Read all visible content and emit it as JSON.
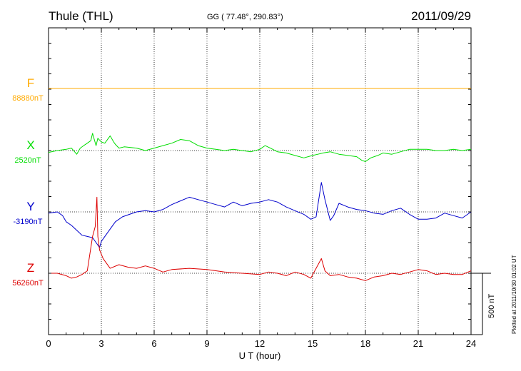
{
  "header": {
    "station": "Thule (THL)",
    "coords": "GG ( 77.48°, 290.83°)",
    "date": "2011/09/29"
  },
  "footer_note": "Plotted at 2011/10/30 01:02 UT",
  "colors": {
    "F": "#ffaa00",
    "X": "#00dd00",
    "Y": "#0000cc",
    "Z": "#dd0000",
    "axis": "#000000",
    "grid": "#000000"
  },
  "chart_data": {
    "type": "line",
    "xlabel": "U T (hour)",
    "xlim": [
      0,
      24
    ],
    "xticks": [
      0,
      3,
      6,
      9,
      12,
      15,
      18,
      21,
      24
    ],
    "xtick_labels": [
      "0",
      "3",
      "6",
      "9",
      "12",
      "15",
      "18",
      "21",
      "24"
    ],
    "y_units": "nT",
    "scale_bar_nT": 500,
    "scale_bar_label": "500 nT",
    "grid": true,
    "series": [
      {
        "name": "F",
        "baseline_label": "88880nT",
        "x": [
          0,
          24
        ],
        "offset_nT": [
          0,
          0
        ]
      },
      {
        "name": "X",
        "baseline_label": "2520nT",
        "x": [
          0,
          0.5,
          1.0,
          1.3,
          1.6,
          1.8,
          2.0,
          2.2,
          2.4,
          2.5,
          2.6,
          2.7,
          2.8,
          3.0,
          3.2,
          3.5,
          3.7,
          3.8,
          4.0,
          4.3,
          5.0,
          5.5,
          6.0,
          6.5,
          7.0,
          7.5,
          8.0,
          8.5,
          9.0,
          9.5,
          10.0,
          10.5,
          11.0,
          11.5,
          12.0,
          12.3,
          12.6,
          13.0,
          13.5,
          14.0,
          14.5,
          15.0,
          15.3,
          15.6,
          16.0,
          16.5,
          17.0,
          17.5,
          17.8,
          18.0,
          18.3,
          18.7,
          19.0,
          19.5,
          20.0,
          20.5,
          21.0,
          21.5,
          22.0,
          22.5,
          23.0,
          23.5,
          24.0
        ],
        "offset_nT": [
          -15,
          0,
          10,
          20,
          -30,
          20,
          40,
          60,
          80,
          140,
          90,
          40,
          100,
          70,
          60,
          120,
          70,
          50,
          20,
          30,
          20,
          0,
          20,
          40,
          60,
          90,
          80,
          40,
          20,
          10,
          0,
          10,
          0,
          -10,
          10,
          40,
          20,
          -10,
          -20,
          -40,
          -60,
          -40,
          -30,
          -20,
          -10,
          -30,
          -40,
          -50,
          -80,
          -90,
          -60,
          -40,
          -20,
          -30,
          -10,
          10,
          10,
          10,
          0,
          0,
          10,
          0,
          10
        ]
      },
      {
        "name": "Y",
        "baseline_label": "-3190nT",
        "x": [
          0,
          0.5,
          0.8,
          1.0,
          1.3,
          1.6,
          1.9,
          2.2,
          2.5,
          2.7,
          2.9,
          3.0,
          3.2,
          3.5,
          3.8,
          4.2,
          4.6,
          5.0,
          5.5,
          6.0,
          6.5,
          7.0,
          7.5,
          8.0,
          8.5,
          9.0,
          9.5,
          10.0,
          10.5,
          11.0,
          11.5,
          12.0,
          12.5,
          13.0,
          13.5,
          14.0,
          14.5,
          14.9,
          15.2,
          15.5,
          15.7,
          16.0,
          16.2,
          16.5,
          17.0,
          17.5,
          18.0,
          18.5,
          19.0,
          19.5,
          20.0,
          20.5,
          21.0,
          21.5,
          22.0,
          22.5,
          23.0,
          23.5,
          24.0
        ],
        "offset_nT": [
          -10,
          0,
          -30,
          -80,
          -110,
          -150,
          -190,
          -200,
          -210,
          -250,
          -290,
          -240,
          -200,
          -140,
          -80,
          -40,
          -20,
          0,
          10,
          0,
          20,
          60,
          90,
          120,
          100,
          80,
          60,
          40,
          80,
          50,
          70,
          80,
          100,
          80,
          40,
          10,
          -20,
          -60,
          -40,
          240,
          100,
          -70,
          -30,
          70,
          40,
          20,
          10,
          -10,
          -20,
          10,
          30,
          -20,
          -60,
          -60,
          -50,
          -10,
          -30,
          -50,
          0
        ]
      },
      {
        "name": "Z",
        "baseline_label": "56260nT",
        "x": [
          0,
          0.5,
          1.0,
          1.3,
          1.6,
          1.9,
          2.2,
          2.5,
          2.65,
          2.75,
          2.8,
          2.9,
          3.1,
          3.5,
          4.0,
          4.5,
          5.0,
          5.5,
          6.0,
          6.5,
          7.0,
          8.0,
          9.0,
          10.0,
          11.0,
          12.0,
          12.5,
          13.0,
          13.5,
          14.0,
          14.5,
          14.9,
          15.2,
          15.5,
          15.7,
          16.0,
          16.5,
          17.0,
          17.5,
          18.0,
          18.5,
          19.0,
          19.5,
          20.0,
          20.5,
          21.0,
          21.5,
          22.0,
          22.5,
          23.0,
          23.5,
          24.0
        ],
        "offset_nT": [
          0,
          0,
          -20,
          -40,
          -30,
          -10,
          20,
          300,
          380,
          620,
          300,
          190,
          120,
          40,
          70,
          50,
          40,
          60,
          40,
          10,
          30,
          40,
          30,
          10,
          0,
          -10,
          10,
          0,
          -20,
          10,
          -10,
          -40,
          40,
          120,
          20,
          -20,
          -10,
          -30,
          -40,
          -60,
          -30,
          -20,
          0,
          -10,
          10,
          30,
          20,
          -10,
          0,
          -10,
          -10,
          20
        ]
      }
    ]
  }
}
